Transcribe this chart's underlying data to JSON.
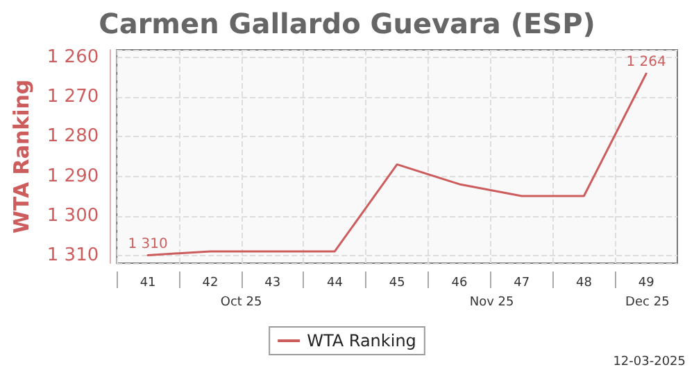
{
  "chart_data": {
    "type": "line",
    "title": "Carmen Gallardo Guevara (ESP)",
    "ylabel": "WTA Ranking",
    "categories": [
      "41",
      "42",
      "43",
      "44",
      "45",
      "46",
      "47",
      "48",
      "49"
    ],
    "series": [
      {
        "name": "WTA Ranking",
        "color": "#cd5c5c",
        "values": [
          1310,
          1309,
          1309,
          1309,
          1287,
          1292,
          1295,
          1295,
          1264
        ],
        "value_labels": [
          "1 310",
          null,
          null,
          null,
          null,
          null,
          null,
          null,
          "1 264"
        ]
      }
    ],
    "ylim": [
      1312,
      1258
    ],
    "yticks": [
      {
        "value": 1260,
        "label": "1 260"
      },
      {
        "value": 1270,
        "label": "1 270"
      },
      {
        "value": 1280,
        "label": "1 280"
      },
      {
        "value": 1290,
        "label": "1 290"
      },
      {
        "value": 1300,
        "label": "1 300"
      },
      {
        "value": 1310,
        "label": "1 310"
      }
    ],
    "annotations": [
      "Oct 25",
      "Nov 25",
      "Dec 25",
      "12-03-2025"
    ],
    "grid": true,
    "legend": "bottom",
    "marker": "none",
    "line_style": "solid"
  }
}
